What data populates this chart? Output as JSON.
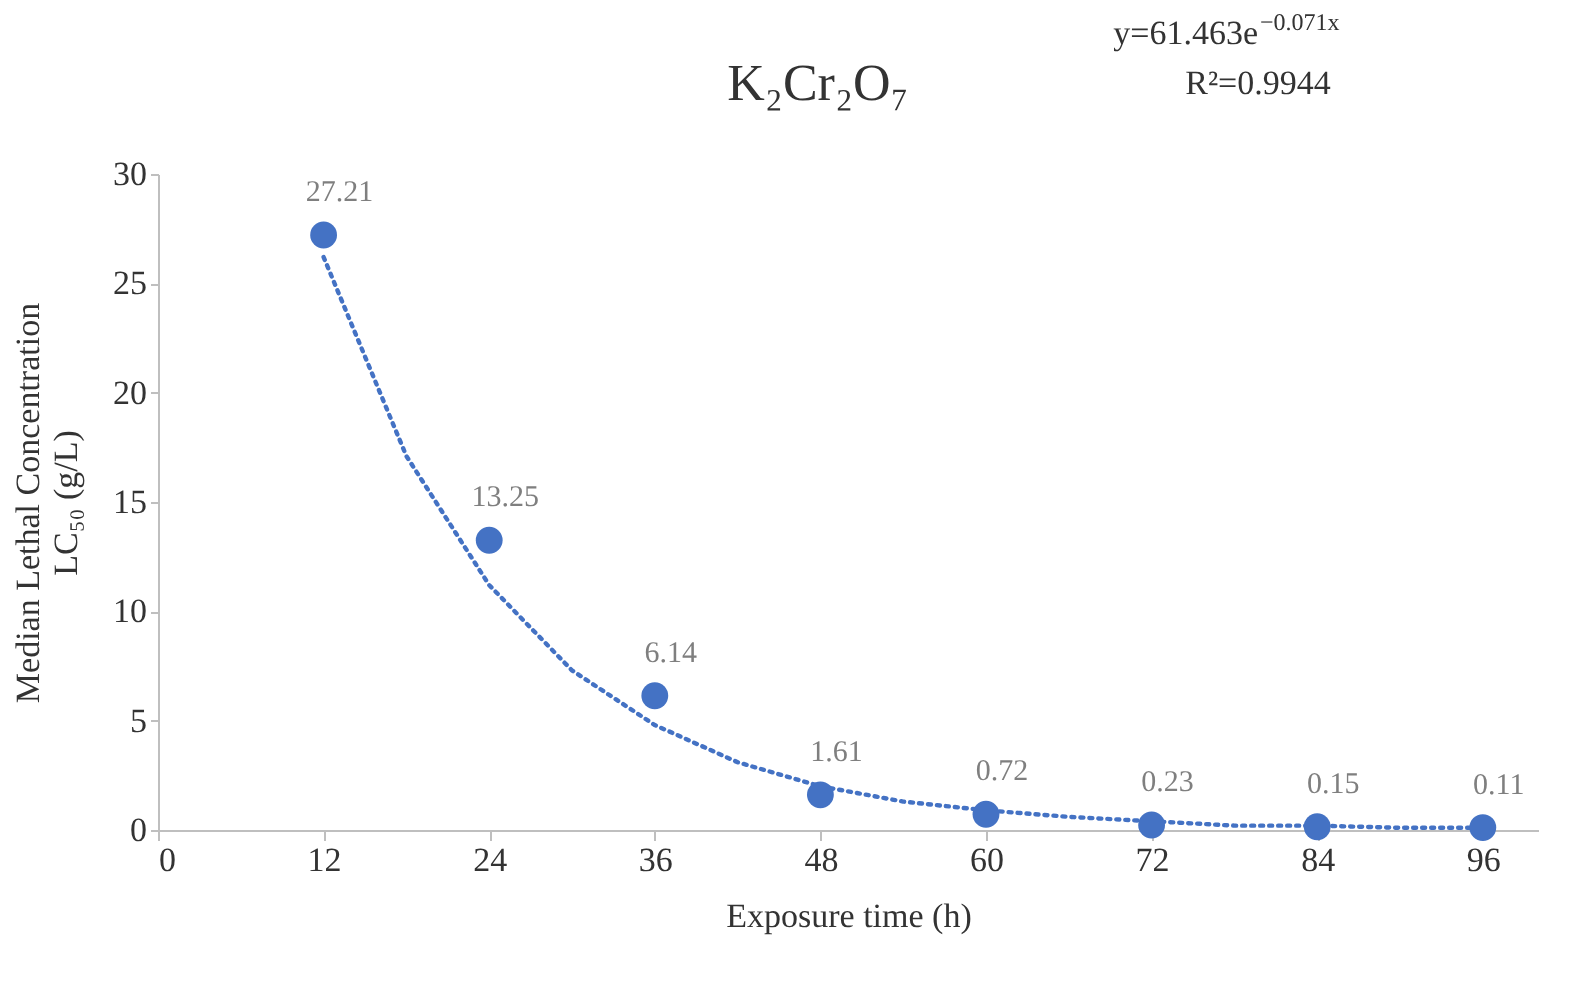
{
  "chart_data": {
    "type": "scatter",
    "title": "K₂Cr₂O₇",
    "xlabel": "Exposure time (h)",
    "ylabel": "Median Lethal Concentration\nLC₅₀ (g/L)",
    "annotations": [
      "y=61.463e$^{−0.071x}$",
      "R²=0.9944"
    ],
    "series": [
      {
        "type": "line",
        "color": "#4472c4",
        "line_style": "dotted",
        "marker": "none",
        "x": [
          12,
          18,
          24,
          30,
          36,
          42,
          48,
          54,
          60,
          66,
          72,
          78,
          84,
          90,
          96
        ],
        "values": [
          26.2,
          17.1,
          11.2,
          7.3,
          4.8,
          3.1,
          2.0,
          1.3,
          0.9,
          0.6,
          0.4,
          0.2,
          0.2,
          0.1,
          0.1
        ]
      },
      {
        "color": "#4472c4",
        "marker": "circle",
        "x": [
          12,
          24,
          36,
          48,
          60,
          72,
          84,
          96
        ],
        "values": [
          27.21,
          13.25,
          6.14,
          1.61,
          0.72,
          0.23,
          0.15,
          0.11
        ],
        "value_labels": [
          "27.21",
          "13.25",
          "6.14",
          "1.61",
          "0.72",
          "0.23",
          "0.15",
          "0.11"
        ]
      }
    ],
    "legend": false,
    "grid": false,
    "xlim": [
      0,
      100
    ],
    "xticks": [
      0,
      12,
      24,
      36,
      48,
      60,
      72,
      84,
      96
    ],
    "ylim": [
      0,
      30
    ],
    "yticks": [
      0,
      5,
      10,
      15,
      20,
      25,
      30
    ]
  }
}
